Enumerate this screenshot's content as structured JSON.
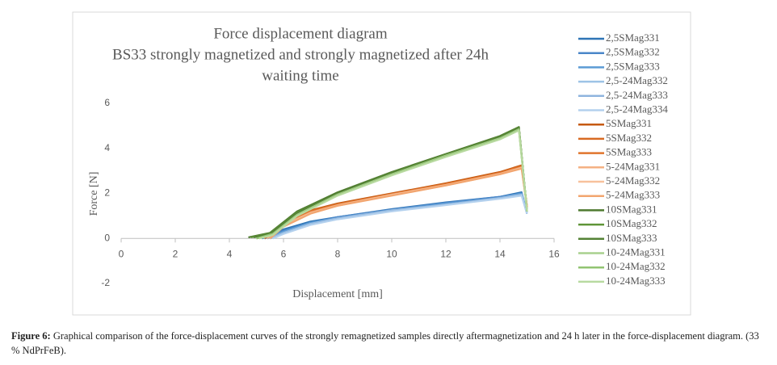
{
  "chart_data": {
    "type": "line",
    "title": [
      "Force displacement diagram",
      "BS33 strongly magnetized and strongly magnetized after 24h",
      "waiting time"
    ],
    "x_label": "Displacement [mm]",
    "y_label": "Force [N]",
    "xlim": [
      0,
      16
    ],
    "xticks": [
      0,
      2,
      4,
      6,
      8,
      10,
      12,
      14,
      16
    ],
    "ylim": [
      -2,
      6
    ],
    "yticks": [
      -2,
      0,
      2,
      4,
      6
    ],
    "grid": false,
    "legend": "right",
    "series": [
      {
        "name": "2,5SMag331",
        "color": "#2e75b6",
        "x": [
          5.2,
          6,
          7,
          8,
          10,
          12,
          14,
          14.8,
          15
        ],
        "values": [
          0,
          0.4,
          0.75,
          0.95,
          1.3,
          1.6,
          1.85,
          2.05,
          1.1
        ]
      },
      {
        "name": "2,5SMag332",
        "color": "#4a86c8",
        "x": [
          5.3,
          6,
          7,
          8,
          10,
          12,
          14,
          14.8,
          15
        ],
        "values": [
          0,
          0.35,
          0.7,
          0.95,
          1.28,
          1.58,
          1.85,
          2.0,
          1.1
        ]
      },
      {
        "name": "2,5SMag333",
        "color": "#5b9bd5",
        "x": [
          5.4,
          6,
          7,
          8,
          10,
          12,
          14,
          14.8,
          15
        ],
        "values": [
          0,
          0.3,
          0.7,
          0.9,
          1.25,
          1.55,
          1.8,
          2.0,
          1.1
        ]
      },
      {
        "name": "2,5-24Mag332",
        "color": "#9dc3e6",
        "x": [
          5.5,
          6,
          7,
          8,
          10,
          12,
          14,
          14.8,
          15
        ],
        "values": [
          0,
          0.25,
          0.65,
          0.9,
          1.25,
          1.5,
          1.8,
          1.95,
          1.1
        ]
      },
      {
        "name": "2,5-24Mag333",
        "color": "#8fb4de",
        "x": [
          5.5,
          6,
          7,
          8,
          10,
          12,
          14,
          14.8,
          15
        ],
        "values": [
          0,
          0.22,
          0.62,
          0.88,
          1.22,
          1.5,
          1.78,
          1.92,
          1.1
        ]
      },
      {
        "name": "2,5-24Mag334",
        "color": "#b4d1ee",
        "x": [
          5.6,
          6,
          7,
          8,
          10,
          12,
          14,
          14.8,
          15
        ],
        "values": [
          0,
          0.2,
          0.6,
          0.85,
          1.2,
          1.48,
          1.76,
          1.9,
          1.1
        ]
      },
      {
        "name": "5SMag331",
        "color": "#c55a11",
        "x": [
          5.3,
          6,
          7,
          8,
          10,
          12,
          14,
          14.8,
          15
        ],
        "values": [
          0,
          0.7,
          1.25,
          1.55,
          2.0,
          2.45,
          2.95,
          3.25,
          1.4
        ]
      },
      {
        "name": "5SMag332",
        "color": "#d86a22",
        "x": [
          5.3,
          6,
          7,
          8,
          10,
          12,
          14,
          14.8,
          15
        ],
        "values": [
          0,
          0.68,
          1.22,
          1.52,
          1.98,
          2.42,
          2.92,
          3.22,
          1.4
        ]
      },
      {
        "name": "5SMag333",
        "color": "#e0742c",
        "x": [
          5.4,
          6,
          7,
          8,
          10,
          12,
          14,
          14.8,
          15
        ],
        "values": [
          0,
          0.65,
          1.2,
          1.5,
          1.95,
          2.4,
          2.9,
          3.2,
          1.4
        ]
      },
      {
        "name": "5-24Mag331",
        "color": "#f4b183",
        "x": [
          5.4,
          6,
          7,
          8,
          10,
          12,
          14,
          14.8,
          15
        ],
        "values": [
          0,
          0.6,
          1.15,
          1.48,
          1.95,
          2.38,
          2.88,
          3.15,
          1.4
        ]
      },
      {
        "name": "5-24Mag332",
        "color": "#f7c19c",
        "x": [
          5.5,
          6,
          7,
          8,
          10,
          12,
          14,
          14.8,
          15
        ],
        "values": [
          0,
          0.55,
          1.12,
          1.45,
          1.92,
          2.35,
          2.85,
          3.12,
          1.4
        ]
      },
      {
        "name": "5-24Mag333",
        "color": "#f2a56f",
        "x": [
          5.5,
          6,
          7,
          8,
          10,
          12,
          14,
          14.8,
          15
        ],
        "values": [
          0,
          0.52,
          1.1,
          1.45,
          1.9,
          2.35,
          2.85,
          3.1,
          1.4
        ]
      },
      {
        "name": "10SMag331",
        "color": "#4e7a2f",
        "x": [
          4.7,
          5.5,
          6.5,
          8,
          10,
          12,
          14,
          14.7,
          15
        ],
        "values": [
          0.05,
          0.25,
          1.2,
          2.05,
          2.95,
          3.75,
          4.55,
          4.95,
          1.2
        ]
      },
      {
        "name": "10SMag332",
        "color": "#5f9438",
        "x": [
          4.8,
          5.5,
          6.5,
          8,
          10,
          12,
          14,
          14.7,
          15
        ],
        "values": [
          0.05,
          0.22,
          1.15,
          2.0,
          2.92,
          3.72,
          4.52,
          4.92,
          1.2
        ]
      },
      {
        "name": "10SMag333",
        "color": "#548235",
        "x": [
          4.9,
          5.5,
          6.5,
          8,
          10,
          12,
          14,
          14.7,
          15
        ],
        "values": [
          0.05,
          0.2,
          1.12,
          2.0,
          2.9,
          3.7,
          4.5,
          4.9,
          1.2
        ]
      },
      {
        "name": "10-24Mag331",
        "color": "#a9d18e",
        "x": [
          5.0,
          5.6,
          6.5,
          8,
          10,
          12,
          14,
          14.7,
          15
        ],
        "values": [
          0,
          0.2,
          1.05,
          1.95,
          2.85,
          3.68,
          4.45,
          4.85,
          1.2
        ]
      },
      {
        "name": "10-24Mag332",
        "color": "#92c472",
        "x": [
          5.0,
          5.6,
          6.5,
          8,
          10,
          12,
          14,
          14.7,
          15
        ],
        "values": [
          0,
          0.18,
          1.02,
          1.92,
          2.82,
          3.65,
          4.42,
          4.82,
          1.2
        ]
      },
      {
        "name": "10-24Mag333",
        "color": "#b8daa0",
        "x": [
          5.1,
          5.6,
          6.5,
          8,
          10,
          12,
          14,
          14.7,
          15
        ],
        "values": [
          0,
          0.15,
          1.0,
          1.9,
          2.8,
          3.62,
          4.4,
          4.8,
          1.2
        ]
      }
    ]
  },
  "caption": {
    "label": "Figure 6:",
    "text": "Graphical comparison of the force-displacement curves of the strongly remagnetized samples directly aftermagnetization and 24 h later in the force-displacement diagram. (33 % NdPrFeB)."
  }
}
